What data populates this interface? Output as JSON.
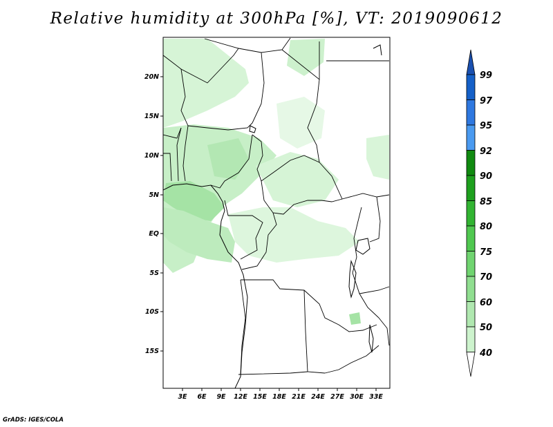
{
  "title": "Relative humidity at 300hPa [%], VT: 2019090612",
  "credit": "GrADS: IGES/COLA",
  "map": {
    "projection": "lat-lon",
    "lon_range": [
      0.5,
      35.5
    ],
    "lat_range": [
      -20,
      24.5
    ],
    "lon_ticks": [
      "3E",
      "6E",
      "9E",
      "12E",
      "15E",
      "18E",
      "21E",
      "24E",
      "27E",
      "30E",
      "33E"
    ],
    "lat_ticks": [
      "20N",
      "15N",
      "10N",
      "5N",
      "EQ",
      "5S",
      "10S",
      "15S"
    ],
    "border_color": "#000000"
  },
  "colorbar": {
    "levels": [
      "99",
      "97",
      "95",
      "92",
      "90",
      "85",
      "80",
      "75",
      "70",
      "60",
      "50",
      "40"
    ],
    "colors": [
      "#1560c8",
      "#2e78e0",
      "#4a9af0",
      "#108a10",
      "#1ea01e",
      "#32b432",
      "#50c850",
      "#70d470",
      "#90de90",
      "#b0e8b0",
      "#cdf3cd",
      "#ebfaeb"
    ],
    "top_arrow_color": "#1a50b0",
    "bottom_arrow_color": "#ffffff"
  }
}
